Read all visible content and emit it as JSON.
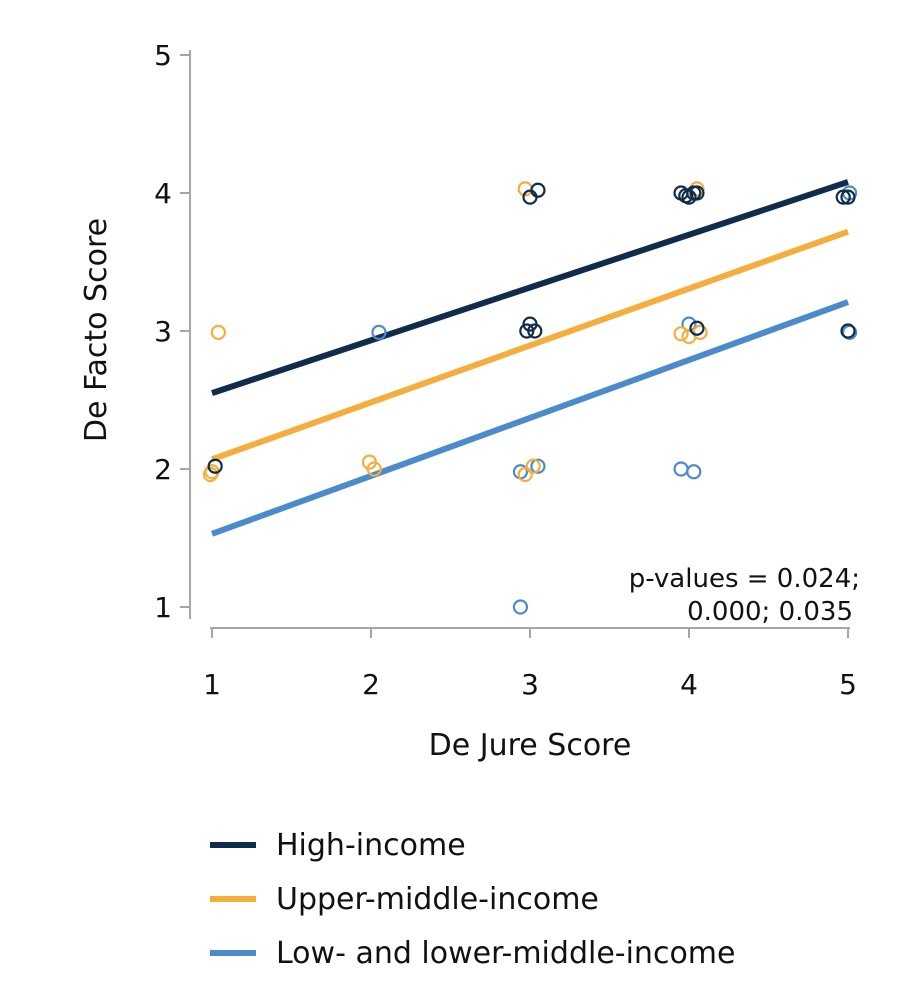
{
  "chart_data": {
    "type": "scatter",
    "title": "",
    "xlabel": "De Jure Score",
    "ylabel": "De Facto Score",
    "xlim": [
      1,
      5
    ],
    "ylim": [
      1,
      5
    ],
    "xticks": [
      1,
      2,
      3,
      4,
      5
    ],
    "yticks": [
      1,
      2,
      3,
      4,
      5
    ],
    "grid": false,
    "legend_position": "bottom",
    "annotation": [
      "p-values = 0.024;",
      "0.000; 0.035"
    ],
    "series": [
      {
        "name": "High-income",
        "color": "#0f2d4a",
        "fit": {
          "x": [
            1,
            5
          ],
          "y": [
            2.55,
            4.08
          ]
        },
        "points": [
          [
            1.02,
            2.02
          ],
          [
            2.98,
            3.0
          ],
          [
            3.0,
            3.05
          ],
          [
            3.03,
            3.0
          ],
          [
            3.0,
            3.97
          ],
          [
            3.05,
            4.02
          ],
          [
            3.95,
            4.0
          ],
          [
            3.98,
            3.98
          ],
          [
            4.0,
            3.97
          ],
          [
            4.03,
            4.0
          ],
          [
            4.05,
            4.0
          ],
          [
            4.05,
            3.02
          ],
          [
            4.97,
            3.97
          ],
          [
            5.0,
            3.97
          ],
          [
            5.0,
            3.0
          ]
        ]
      },
      {
        "name": "Upper-middle-income",
        "color": "#f5ae3c",
        "fit": {
          "x": [
            1,
            5
          ],
          "y": [
            2.07,
            3.72
          ]
        },
        "points": [
          [
            1.0,
            1.98
          ],
          [
            0.99,
            1.96
          ],
          [
            1.04,
            2.99
          ],
          [
            1.99,
            2.05
          ],
          [
            2.02,
            2.0
          ],
          [
            2.97,
            1.96
          ],
          [
            3.02,
            2.02
          ],
          [
            2.97,
            4.03
          ],
          [
            3.95,
            2.98
          ],
          [
            4.0,
            2.96
          ],
          [
            4.07,
            2.99
          ],
          [
            4.05,
            4.03
          ]
        ]
      },
      {
        "name": "Low- and lower-middle-income",
        "color": "#4b8bcb",
        "fit": {
          "x": [
            1,
            5
          ],
          "y": [
            1.53,
            3.21
          ]
        },
        "points": [
          [
            2.05,
            2.99
          ],
          [
            2.94,
            1.98
          ],
          [
            3.05,
            2.02
          ],
          [
            2.94,
            1.0
          ],
          [
            3.95,
            2.0
          ],
          [
            4.03,
            1.98
          ],
          [
            4.0,
            3.05
          ],
          [
            5.01,
            4.0
          ],
          [
            5.01,
            2.99
          ]
        ]
      }
    ]
  }
}
